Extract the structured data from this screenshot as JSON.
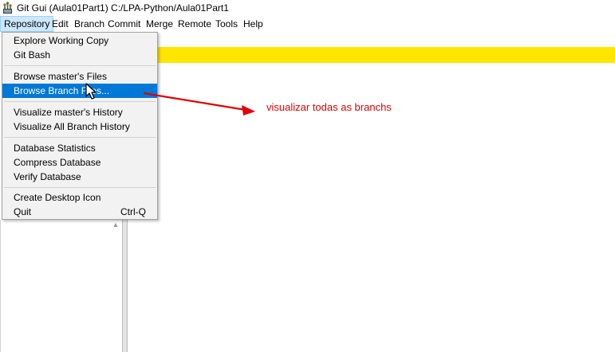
{
  "window": {
    "title": "Git Gui (Aula01Part1) C:/LPA-Python/Aula01Part1"
  },
  "menubar": {
    "items": [
      {
        "label": "Repository"
      },
      {
        "label": "Edit"
      },
      {
        "label": "Branch"
      },
      {
        "label": "Commit"
      },
      {
        "label": "Merge"
      },
      {
        "label": "Remote"
      },
      {
        "label": "Tools"
      },
      {
        "label": "Help"
      }
    ]
  },
  "repository_menu": {
    "explore_working_copy": "Explore Working Copy",
    "git_bash": "Git Bash",
    "browse_master_files": "Browse master's Files",
    "browse_branch_files": "Browse Branch Files...",
    "visualize_master_history": "Visualize master's History",
    "visualize_all_branch_history": "Visualize All Branch History",
    "database_statistics": "Database Statistics",
    "compress_database": "Compress Database",
    "verify_database": "Verify Database",
    "create_desktop_icon": "Create Desktop Icon",
    "quit": "Quit",
    "quit_shortcut": "Ctrl-Q"
  },
  "annotation": {
    "text": "visualizar todas as branchs",
    "color": "#e00000"
  },
  "colors": {
    "highlight": "#0078d7",
    "status_bar": "#ffe600"
  },
  "icons": {
    "app": "git-gui-app-icon",
    "cursor": "mouse-pointer-icon",
    "arrow": "red-annotation-arrow"
  }
}
